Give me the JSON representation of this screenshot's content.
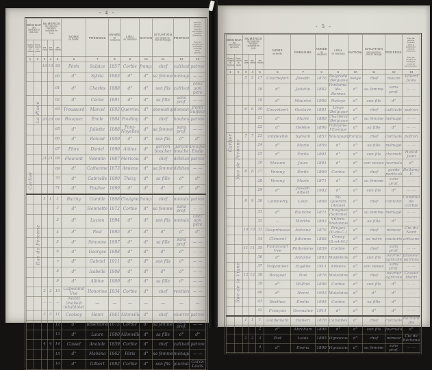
{
  "colors": {
    "background": "#141311",
    "paper": "#dcdad2",
    "ink": "#84848f",
    "print": "#57554c"
  },
  "headers": {
    "designation": {
      "title": "DÉSIGNATION",
      "note": "des hameaux et des rues",
      "sub": [
        "Écarts, villages ou hameaux",
        "Rues, places ou quais"
      ]
    },
    "numeros": {
      "title": "NUMÉROS",
      "note": "des maisons, ménages, individus en 1911",
      "sub": [
        "des maisons",
        "des ménages",
        "des individus"
      ]
    },
    "noms": {
      "title": "NOMS",
      "note": "de famille"
    },
    "prenoms": {
      "title": "PRÉNOMS",
      "note": ""
    },
    "annee": {
      "title": "ANNÉE",
      "note": "de naissance"
    },
    "lieu": {
      "title": "LIEU",
      "note": "de naissance"
    },
    "nationalite": {
      "title": "NATIONALITÉ",
      "note": ""
    },
    "situation": {
      "title": "SITUATION",
      "note": "par rapport au chef de ménage"
    },
    "professions": {
      "title": "PROFESSIONS",
      "note": ""
    },
    "patrons": {
      "note1": "Pour les patrons, situation dans la profession, nombre d'ouvriers.",
      "note2": "Pour les ouvriers ou employés, noms de leurs patrons."
    },
    "col_numbers": [
      "1",
      "2",
      "3",
      "4",
      "5",
      "6",
      "7",
      "8",
      "9",
      "10",
      "11",
      "12",
      "13"
    ]
  },
  "pages": [
    {
      "page_number": "- 4 -",
      "section_starts": [
        13
      ],
      "margin_labels": [
        {
          "col": 1,
          "text": "La Place",
          "from": 1,
          "to": 12
        },
        {
          "col": 0,
          "text": "Carlier",
          "from": 6,
          "to": 22
        },
        {
          "col": 1,
          "text": "Rue de Péronne",
          "from": 13,
          "to": 29
        }
      ],
      "rows": [
        [
          "19",
          "19",
          "59",
          "Périn",
          "Sulpice",
          "1857",
          "Corbie",
          "français",
          "chef",
          "cultivateur",
          "patron"
        ],
        [
          "",
          "",
          "60",
          "d°",
          "Sylvia",
          "1863",
          "d°",
          "d°",
          "sa femme",
          "ménagère",
          "— —"
        ],
        [
          "",
          "",
          "61",
          "d°",
          "Charles",
          "1888",
          "d°",
          "d°",
          "son fils",
          "cultivateur",
          "chez son père"
        ],
        [
          "",
          "",
          "62",
          "d°",
          "Cécile",
          "1891",
          "d°",
          "d°",
          "sa fille",
          "sans prof.",
          "— —"
        ],
        [
          "",
          "",
          "63",
          "Troussard",
          "Marcel",
          "1893",
          "Querrieu",
          "d°",
          "domestique",
          "domestique",
          "Périn Sulpice"
        ],
        [
          "20",
          "20",
          "64",
          "Bouquez",
          "Émile",
          "1884",
          "Fouilloy",
          "d°",
          "chef",
          "boulanger",
          "patron"
        ],
        [
          "",
          "",
          "65",
          "d°",
          "Juliette",
          "1888",
          "Pont-Noyelles",
          "d°",
          "sa femme",
          "sans prof.",
          "— —"
        ],
        [
          "",
          "",
          "66",
          "d°",
          "Roland",
          "1909",
          "d°",
          "d°",
          "son fils",
          "d°",
          "d°"
        ],
        [
          "",
          "",
          "67",
          "Flore",
          "Daniel",
          "1890",
          "Athies",
          "d°",
          "garçon boucher",
          "garçon boucher",
          "Bouquez Émile"
        ],
        [
          "21",
          "21",
          "68",
          "Fleurant",
          "Valentin",
          "1887",
          "Méricourt",
          "d°",
          "chef",
          "débitant",
          "patron"
        ],
        [
          "",
          "",
          "69",
          "d°",
          "Catherine",
          "1873",
          "Amiens",
          "d°",
          "sa femme",
          "débitante",
          "— —"
        ],
        [
          "",
          "",
          "70",
          "d°",
          "Gabrielle",
          "1890",
          "Thézy",
          "d°",
          "sa fille",
          "d°",
          "d°"
        ],
        [
          "",
          "",
          "71",
          "d°",
          "Pauline",
          "1899",
          "d°",
          "d°",
          "d°",
          "d°",
          "d°"
        ],
        [
          "1",
          "1",
          "1",
          "Barthy",
          "Camille",
          "1868",
          "Chuignes",
          "français",
          "chef",
          "menuisier",
          "patron"
        ],
        [
          "",
          "",
          "2",
          "d°",
          "Henriette",
          "1872",
          "Corbie",
          "d°",
          "sa femme",
          "sans prof.",
          "— —"
        ],
        [
          "",
          "",
          "3",
          "d°",
          "Lucien",
          "1894",
          "d°",
          "d°",
          "son fils",
          "menuisier",
          "chez son père"
        ],
        [
          "",
          "",
          "4",
          "d°",
          "Paul",
          "1895",
          "d°",
          "d°",
          "d°",
          "d°",
          "d°"
        ],
        [
          "",
          "",
          "5",
          "d°",
          "Simonne",
          "1897",
          "d°",
          "d°",
          "sa fille",
          "sans prof.",
          "— —"
        ],
        [
          "",
          "",
          "6",
          "d°",
          "Georges",
          "1898",
          "d°",
          "d°",
          "d°",
          "d°",
          "— —"
        ],
        [
          "",
          "",
          "7",
          "d°",
          "Gabriel",
          "1911",
          "d°",
          "d°",
          "son fils",
          "d°",
          "— —"
        ],
        [
          "",
          "",
          "8",
          "d°",
          "Isabelle",
          "1908",
          "d°",
          "d°",
          "d°",
          "d°",
          "— —"
        ],
        [
          "",
          "",
          "9",
          "d°",
          "Albine",
          "1909",
          "d°",
          "d°",
          "sa fille",
          "d°",
          "— —"
        ],
        [
          "2",
          "2",
          "10",
          "Capelland Vve",
          "Honorine",
          "1834",
          "Corbie",
          "d°",
          "chef",
          "rentière",
          "— —"
        ],
        [
          "—",
          "—",
          "—",
          "Néant (maison inhabitée)",
          "—",
          "—",
          "—",
          "—",
          "—",
          "—",
          "—"
        ],
        [
          "3",
          "3",
          "11",
          "Coolzey",
          "Henri",
          "1861",
          "Allonville",
          "d°",
          "chef",
          "charron",
          "patron"
        ],
        [
          "",
          "",
          "12",
          "d°",
          "Rosemonde",
          "1875",
          "Corbie",
          "d°",
          "sa femme",
          "sans prof.",
          "— —"
        ],
        [
          "",
          "",
          "13",
          "d°",
          "Laure",
          "1900",
          "Allonville",
          "d°",
          "sa fille",
          "d°",
          "d°"
        ],
        [
          "4",
          "4",
          "14",
          "Cassel",
          "Anatole",
          "1859",
          "Corbie",
          "d°",
          "chef",
          "cultivateur",
          "patron"
        ],
        [
          "",
          "",
          "15",
          "d°",
          "Malvina",
          "1862",
          "Pâris",
          "d°",
          "sa femme",
          "ménagère",
          "— —"
        ],
        [
          "",
          "",
          "16",
          "d°",
          "Gilbert",
          "1892",
          "Corbie",
          "d°",
          "son fils",
          "journalier",
          "Caron Louis"
        ]
      ]
    },
    {
      "page_number": "- 5 -",
      "section_starts": [
        26
      ],
      "margin_labels": [
        {
          "col": 0,
          "text": "Carlier",
          "from": 3,
          "to": 16
        },
        {
          "col": 1,
          "text": "Rue de Péronne",
          "from": 2,
          "to": 21
        },
        {
          "col": 1,
          "text": "Rue de la Vigne",
          "from": 24,
          "to": 29
        }
      ],
      "rows": [
        [
          "5",
          "5",
          "17",
          "Cauchefert",
          "Joseph",
          "1876",
          "Belgrade (Belgique)",
          "belge",
          "chef",
          "maçon",
          "Villard Jules"
        ],
        [
          "",
          "",
          "18",
          "d°",
          "Juliette",
          "1882",
          "Fontaine-lès-Bernes",
          "d°",
          "sa femme",
          "sans prof.",
          "— —"
        ],
        [
          "",
          "",
          "19",
          "d°",
          "Maurice",
          "1906",
          "Natoye",
          "d°",
          "son fils",
          "d°",
          "— —"
        ],
        [
          "6",
          "6",
          "20",
          "Cauvelaert",
          "Gustave",
          "1881",
          "Liège (Belgique)",
          "d°",
          "chef",
          "cultivateur",
          "patron"
        ],
        [
          "",
          "",
          "21",
          "d°",
          "Marie",
          "1888",
          "Charleroi (Belgique)",
          "d°",
          "sa femme",
          "ménagère",
          "— —"
        ],
        [
          "",
          "",
          "22",
          "d°",
          "Hélène",
          "1896",
          "Fontaine-l'Évêque",
          "d°",
          "sa fille",
          "d°",
          "— —"
        ],
        [
          "7",
          "7",
          "23",
          "Vandeville",
          "Sylvain",
          "1857",
          "Bourgogne",
          "français",
          "chef",
          "cultivateur",
          "patron"
        ],
        [
          "",
          "",
          "24",
          "d°",
          "Marie",
          "1859",
          "d°",
          "d°",
          "sa fille",
          "ménagère",
          "— —"
        ],
        [
          "",
          "",
          "25",
          "d°",
          "Émile",
          "1891",
          "d°",
          "d°",
          "son fils",
          "charretier",
          "Hallut Jean"
        ],
        [
          "",
          "",
          "26",
          "Masure",
          "Jules",
          "1891",
          "d°",
          "d°",
          "son neveu",
          "journalier",
          "d°"
        ],
        [
          "8",
          "8",
          "27",
          "Verony",
          "Émile",
          "1869",
          "Corbie",
          "d°",
          "chef",
          "garde particulier",
          "Bellamy F."
        ],
        [
          "",
          "",
          "28",
          "Verony",
          "Marie",
          "1871",
          "d°",
          "d°",
          "sa femme",
          "sans prof.",
          "— —"
        ],
        [
          "",
          "",
          "29",
          "d°",
          "Joseph Albert",
          "1902",
          "d°",
          "d°",
          "son fils",
          "d°",
          "— —"
        ],
        [
          "9",
          "9",
          "30",
          "Lammerty",
          "Léon",
          "1868",
          "St-Quentin (Aisne)",
          "d°",
          "chef",
          "cantonnier",
          "Commune de Corbie"
        ],
        [
          "",
          "",
          "31",
          "d°",
          "Blanche",
          "1871",
          "Chuignes (Somme)",
          "d°",
          "sa femme",
          "ménagère",
          "— —"
        ],
        [
          "",
          "",
          "32",
          "—",
          "Marthe",
          "1892",
          "Villers-Bretonneux",
          "d°",
          "sa fille",
          "d°",
          "— —"
        ],
        [
          "10",
          "10",
          "33",
          "Desprinasse",
          "Antoine",
          "1876",
          "Bruges (P.-de-C.)",
          "d°",
          "chef",
          "mineur",
          "Cie du Nord"
        ],
        [
          "",
          "",
          "34",
          "Clément",
          "Julienne",
          "1868",
          "Croisy (S.-et-M.)",
          "d°",
          "sa mère",
          "couturière",
          "artisane"
        ],
        [
          "11",
          "11",
          "35",
          "Flamicourt Vve",
          "Philomène",
          "1839",
          "Corbie",
          "d°",
          "chef",
          "sans prof.",
          "— —"
        ],
        [
          "",
          "",
          "36",
          "d°",
          "Antoine",
          "1863",
          "Madeleine",
          "d°",
          "son fils",
          "ouvrier agricole",
          "plusieurs patrons"
        ],
        [
          "",
          "",
          "37",
          "Volponnier",
          "Eugène",
          "1911",
          "Amiens",
          "d°",
          "son neveu",
          "sans prof.",
          "— —"
        ],
        [
          "12",
          "12",
          "38",
          "Bouquet",
          "Noé",
          "1876",
          "Moislains",
          "d°",
          "chef",
          "ouvrier agricole",
          "Cassez Henri"
        ],
        [
          "",
          "",
          "39",
          "d°",
          "Wilfrid",
          "1898",
          "Corbie",
          "d°",
          "son fils",
          "d°",
          "— —"
        ],
        [
          "",
          "",
          "40",
          "d°",
          "Henri",
          "1903",
          "Moislains",
          "d°",
          "d°",
          "d°",
          "— —"
        ],
        [
          "",
          "",
          "41",
          "Berthez",
          "Émilie",
          "1905",
          "Corbie",
          "d°",
          "sa fille",
          "d°",
          "— —"
        ],
        [
          "",
          "",
          "42",
          "François",
          "Germaine",
          "1911",
          "d°",
          "d°",
          "d°",
          "d°",
          "— —"
        ],
        [
          "1",
          "1",
          "1",
          "Guillemant",
          "Hubert",
          "1878",
          "Canaples",
          "d°",
          "chef",
          "cultivateur",
          "Bernard fils"
        ],
        [
          "",
          "",
          "2",
          "d°",
          "Abraham",
          "1898",
          "d°",
          "d°",
          "son fils",
          "journalier",
          "d°"
        ],
        [
          "2",
          "2",
          "3",
          "Piot",
          "Louis",
          "1885",
          "Vignacourt",
          "d°",
          "chef",
          "mineur",
          "Cie de Béthune"
        ],
        [
          "",
          "",
          "4",
          "d°",
          "Emma",
          "1898",
          "Vignacourt",
          "d°",
          "sa femme",
          "sans prof.",
          "— —"
        ]
      ]
    }
  ]
}
